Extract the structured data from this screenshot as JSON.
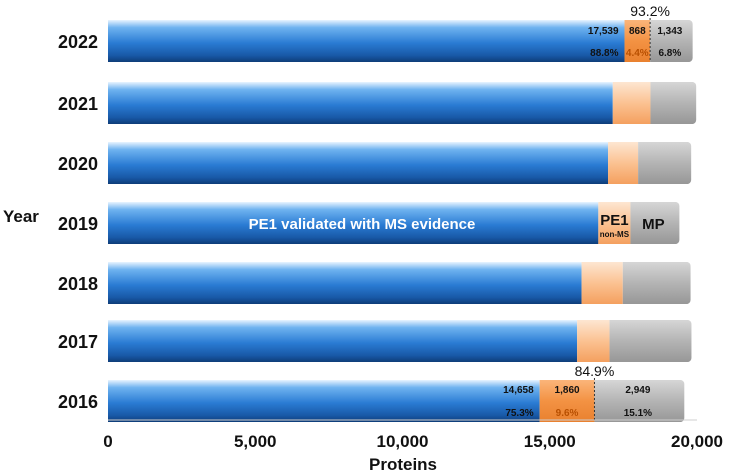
{
  "chart_data": {
    "type": "bar",
    "orientation": "horizontal",
    "stacked": true,
    "title": "",
    "xlabel": "Proteins",
    "ylabel": "Year",
    "xlim": [
      0,
      20000
    ],
    "x_ticks": [
      "0",
      "5,000",
      "10,000",
      "15,000",
      "20,000"
    ],
    "categories": [
      "2022",
      "2021",
      "2020",
      "2019",
      "2018",
      "2017",
      "2016"
    ],
    "series": [
      {
        "name": "PE1 validated with MS evidence",
        "color": "#2e7bd6",
        "values": [
          17539,
          17140,
          16980,
          16650,
          16080,
          15930,
          14658
        ]
      },
      {
        "name": "PE1",
        "sublabel": "non-MS",
        "color": "#f7a463",
        "values": [
          868,
          1280,
          1020,
          1090,
          1400,
          1100,
          1860
        ]
      },
      {
        "name": "MP",
        "color": "#a8a8a8",
        "values": [
          1343,
          1450,
          1700,
          1560,
          2200,
          2680,
          2949
        ]
      }
    ],
    "annotations": {
      "2022": {
        "total_pct": "93.2%",
        "counts": [
          "17,539",
          "868",
          "1,343"
        ],
        "pcts": [
          "88.8%",
          "4.4%",
          "6.8%"
        ]
      },
      "2016": {
        "total_pct": "84.9%",
        "counts": [
          "14,658",
          "1,860",
          "2,949"
        ],
        "pcts": [
          "75.3%",
          "9.6%",
          "15.1%"
        ]
      }
    },
    "grid": false,
    "legend": "inline labels on 2019 bar"
  }
}
